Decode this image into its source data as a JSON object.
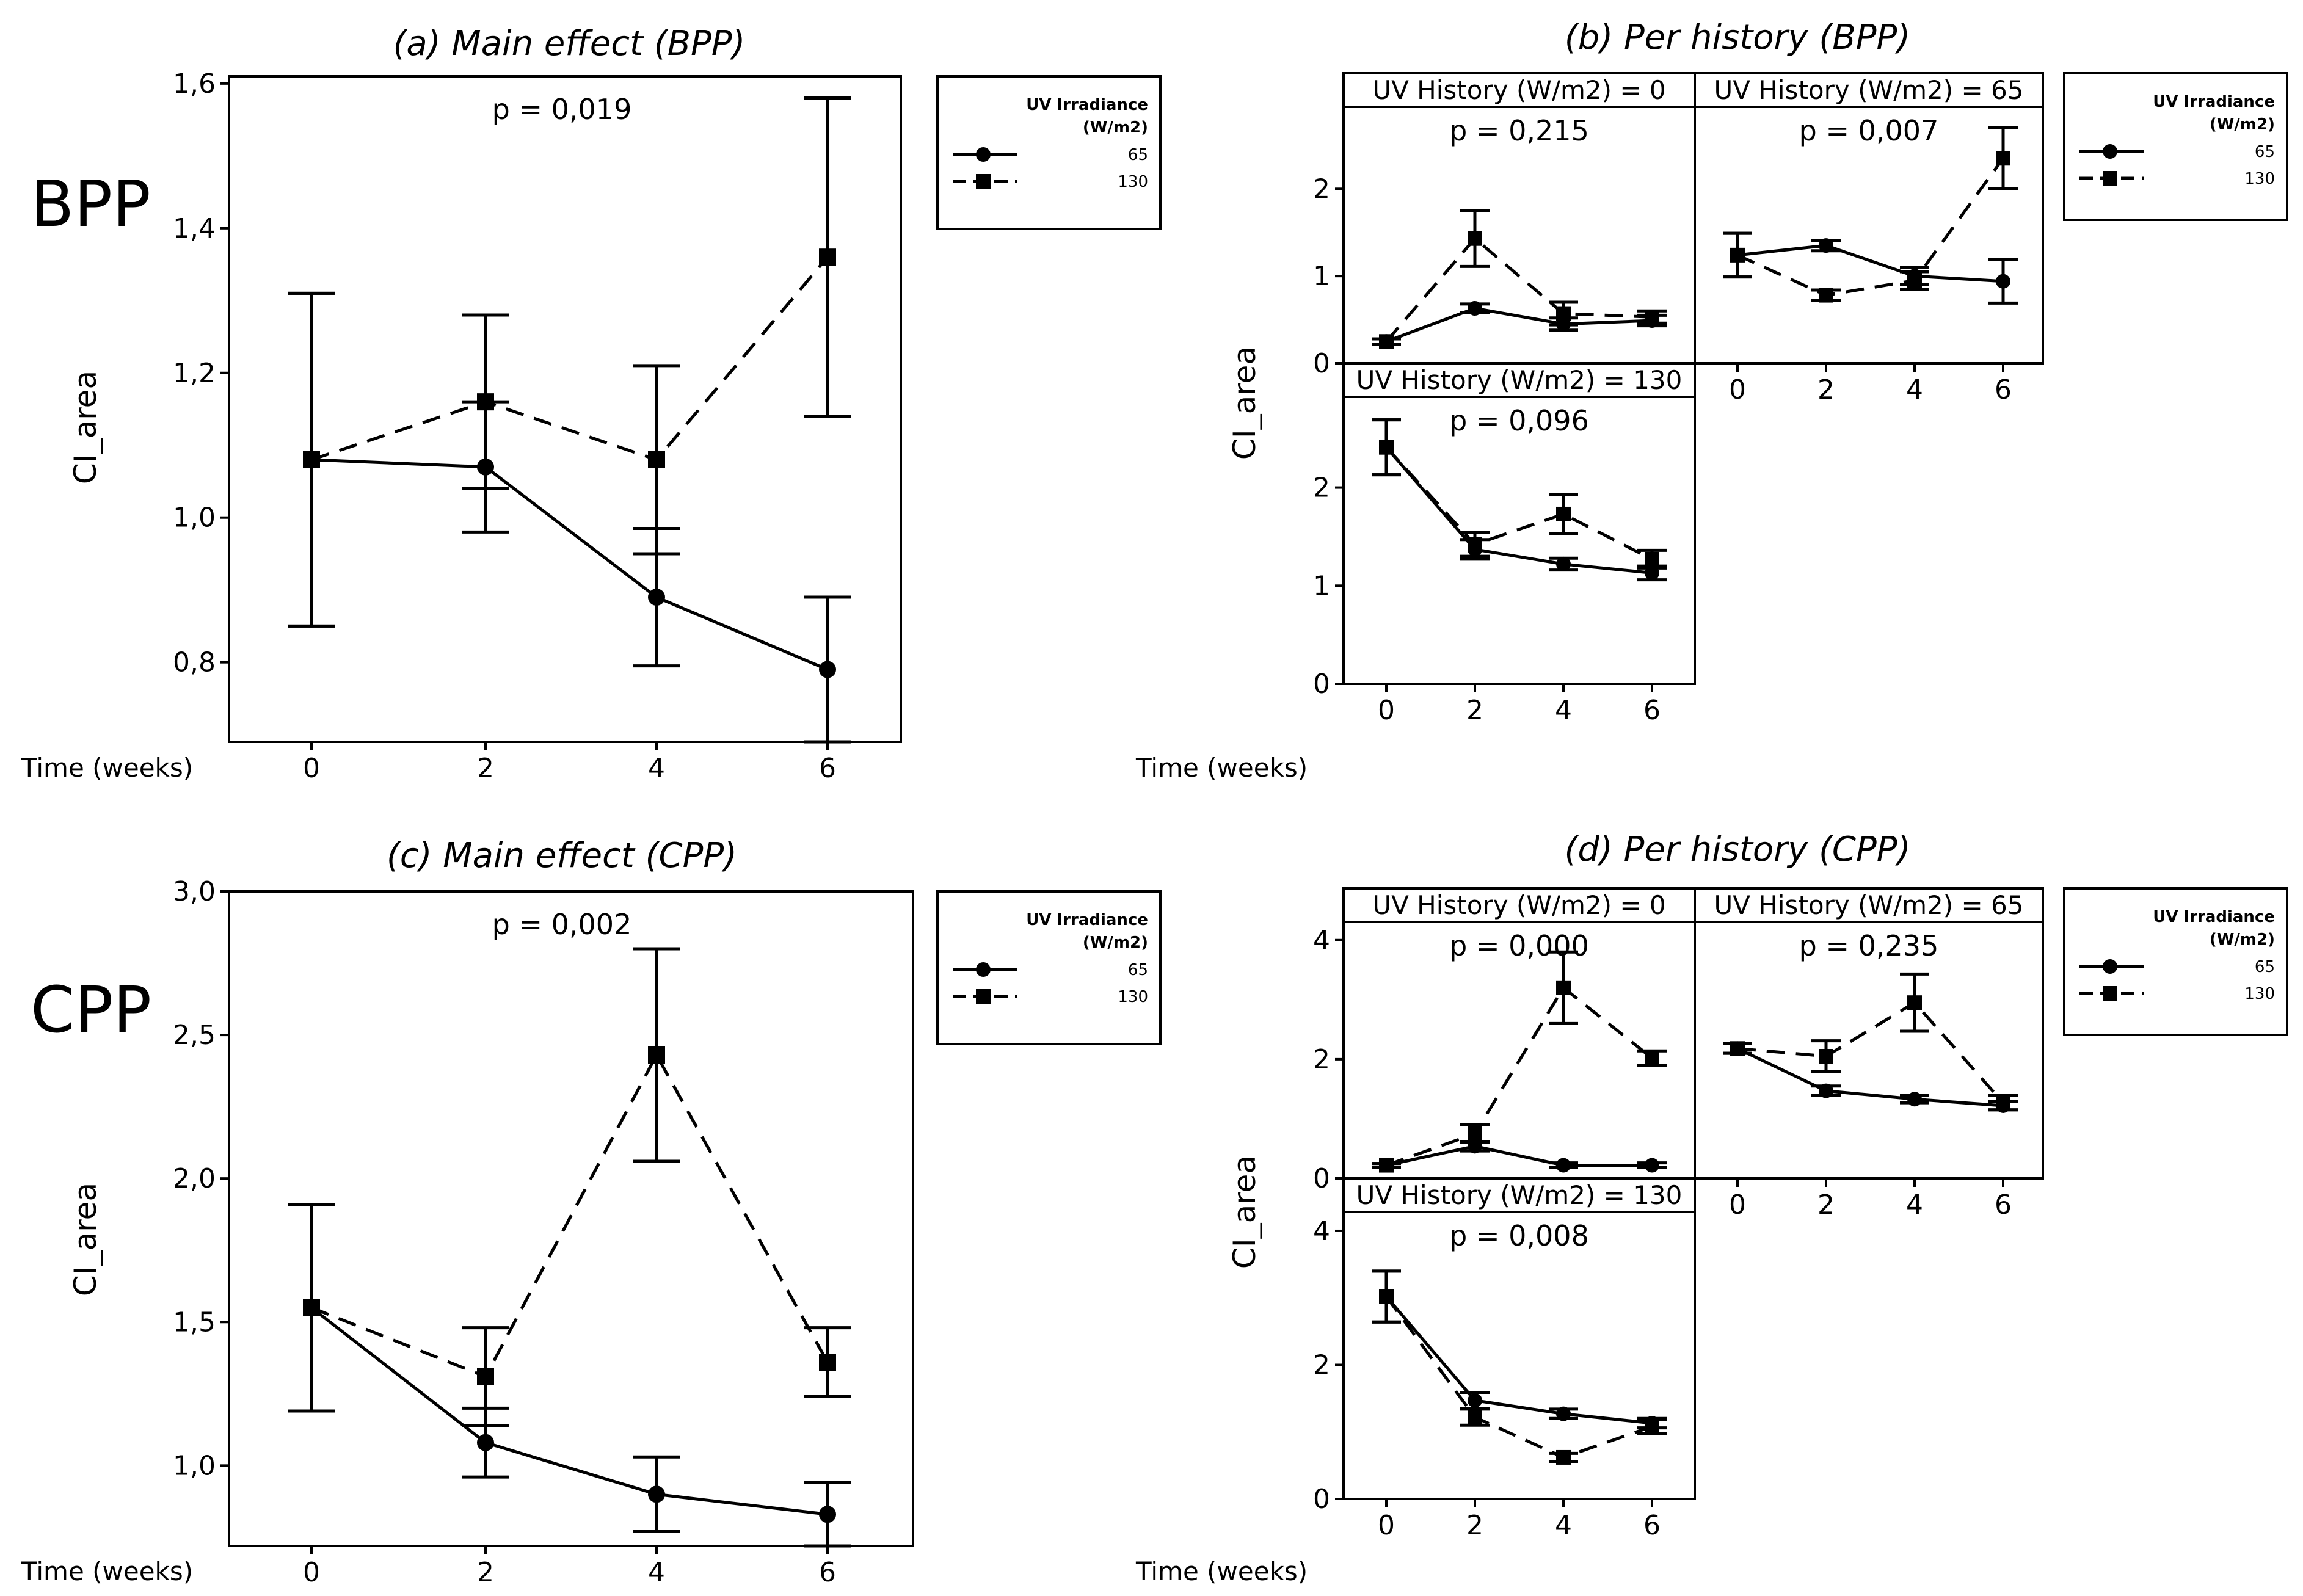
{
  "figure": {
    "row_labels": [
      "BPP",
      "CPP"
    ]
  },
  "legend": {
    "title_line1": "UV Irradiance",
    "title_line2": "(W/m2)",
    "items": [
      "65",
      "130"
    ]
  },
  "chart_data": [
    {
      "id": "a",
      "type": "line",
      "title": "(a) Main effect (BPP)",
      "xlabel": "Time (weeks)",
      "ylabel": "CI_area",
      "categories": [
        0,
        2,
        4,
        6
      ],
      "yticks": [
        "0,8",
        "1,0",
        "1,2",
        "1,4",
        "1,6"
      ],
      "ylim": [
        0.69,
        1.61
      ],
      "grid": false,
      "legend": "right",
      "annotation": "p = 0,019",
      "series": [
        {
          "name": "65",
          "marker": "circle",
          "dash": "solid",
          "values": [
            1.08,
            1.07,
            0.89,
            0.79
          ],
          "err": [
            0.23,
            0.09,
            0.095,
            0.1
          ]
        },
        {
          "name": "130",
          "marker": "square",
          "dash": "dashed",
          "values": [
            1.08,
            1.16,
            1.08,
            1.36
          ],
          "err": [
            0.23,
            0.12,
            0.13,
            0.22
          ]
        }
      ]
    },
    {
      "id": "c",
      "type": "line",
      "title": "(c) Main effect (CPP)",
      "xlabel": "Time (weeks)",
      "ylabel": "CI_area",
      "categories": [
        0,
        2,
        4,
        6
      ],
      "yticks": [
        "1,0",
        "1,5",
        "2,0",
        "2,5",
        "3,0"
      ],
      "ylim": [
        0.72,
        3.0
      ],
      "grid": false,
      "legend": "right",
      "annotation": "p = 0,002",
      "series": [
        {
          "name": "65",
          "marker": "circle",
          "dash": "solid",
          "values": [
            1.55,
            1.08,
            0.9,
            0.83
          ],
          "err": [
            0.36,
            0.12,
            0.13,
            0.11
          ]
        },
        {
          "name": "130",
          "marker": "square",
          "dash": "dashed",
          "values": [
            1.55,
            1.31,
            2.43,
            1.36
          ],
          "err": [
            0.36,
            0.17,
            0.37,
            0.12
          ]
        }
      ]
    },
    {
      "id": "b",
      "type": "line",
      "title": "(b) Per history (BPP)",
      "xlabel": "Time (weeks)",
      "ylabel": "CI_area",
      "categories": [
        0,
        2,
        4,
        6
      ],
      "yticks": [
        "0",
        "1",
        "2"
      ],
      "ylim": [
        0,
        2.8
      ],
      "legend": "right",
      "panels": [
        {
          "strip": "UV History (W/m2) = 0",
          "annotation": "p = 0,215",
          "series": [
            {
              "name": "65",
              "marker": "circle",
              "dash": "solid",
              "values": [
                0.25,
                0.63,
                0.45,
                0.49
              ],
              "err": [
                0.03,
                0.05,
                0.07,
                0.06
              ]
            },
            {
              "name": "130",
              "marker": "square",
              "dash": "dashed",
              "values": [
                0.25,
                1.43,
                0.57,
                0.53
              ],
              "err": [
                0.03,
                0.32,
                0.13,
                0.07
              ]
            }
          ]
        },
        {
          "strip": "UV History (W/m2) = 65",
          "annotation": "p = 0,007",
          "series": [
            {
              "name": "65",
              "marker": "circle",
              "dash": "solid",
              "values": [
                1.24,
                1.35,
                1.0,
                0.94
              ],
              "err": [
                0.25,
                0.06,
                0.1,
                0.25
              ]
            },
            {
              "name": "130",
              "marker": "square",
              "dash": "dashed",
              "values": [
                1.24,
                0.78,
                0.95,
                2.35
              ],
              "err": [
                0.25,
                0.06,
                0.1,
                0.35
              ]
            }
          ]
        },
        {
          "strip": "UV History (W/m2) = 130",
          "annotation": "p = 0,096",
          "series": [
            {
              "name": "65",
              "marker": "circle",
              "dash": "solid",
              "values": [
                2.41,
                1.37,
                1.22,
                1.13
              ],
              "err": [
                0.28,
                0.1,
                0.06,
                0.07
              ]
            },
            {
              "name": "130",
              "marker": "square",
              "dash": "dashed",
              "values": [
                2.41,
                1.42,
                1.73,
                1.27
              ],
              "err": [
                0.28,
                0.12,
                0.2,
                0.09
              ]
            }
          ]
        }
      ]
    },
    {
      "id": "d",
      "type": "line",
      "title": "(d) Per history (CPP)",
      "xlabel": "Time (weeks)",
      "ylabel": "CI_area",
      "categories": [
        0,
        2,
        4,
        6
      ],
      "yticks": [
        "0",
        "2",
        "4"
      ],
      "ylim": [
        0,
        4.1
      ],
      "legend": "right",
      "panels": [
        {
          "strip": "UV History (W/m2) = 0",
          "annotation": "p = 0,000",
          "series": [
            {
              "name": "65",
              "marker": "circle",
              "dash": "solid",
              "values": [
                0.22,
                0.54,
                0.22,
                0.22
              ],
              "err": [
                0.03,
                0.08,
                0.04,
                0.04
              ]
            },
            {
              "name": "130",
              "marker": "square",
              "dash": "dashed",
              "values": [
                0.22,
                0.75,
                3.2,
                2.02
              ],
              "err": [
                0.03,
                0.15,
                0.6,
                0.12
              ]
            }
          ]
        },
        {
          "strip": "UV History (W/m2) = 65",
          "annotation": "p = 0,235",
          "series": [
            {
              "name": "65",
              "marker": "circle",
              "dash": "solid",
              "values": [
                2.18,
                1.47,
                1.33,
                1.22
              ],
              "err": [
                0.08,
                0.08,
                0.06,
                0.07
              ]
            },
            {
              "name": "130",
              "marker": "square",
              "dash": "dashed",
              "values": [
                2.18,
                2.05,
                2.95,
                1.27
              ],
              "err": [
                0.08,
                0.26,
                0.48,
                0.12
              ]
            }
          ]
        },
        {
          "strip": "UV History (W/m2) = 130",
          "annotation": "p = 0,008",
          "series": [
            {
              "name": "65",
              "marker": "circle",
              "dash": "solid",
              "values": [
                3.02,
                1.47,
                1.27,
                1.13
              ],
              "err": [
                0.38,
                0.12,
                0.07,
                0.07
              ]
            },
            {
              "name": "130",
              "marker": "square",
              "dash": "dashed",
              "values": [
                3.02,
                1.22,
                0.62,
                1.08
              ],
              "err": [
                0.38,
                0.12,
                0.06,
                0.1
              ]
            }
          ]
        }
      ]
    }
  ]
}
